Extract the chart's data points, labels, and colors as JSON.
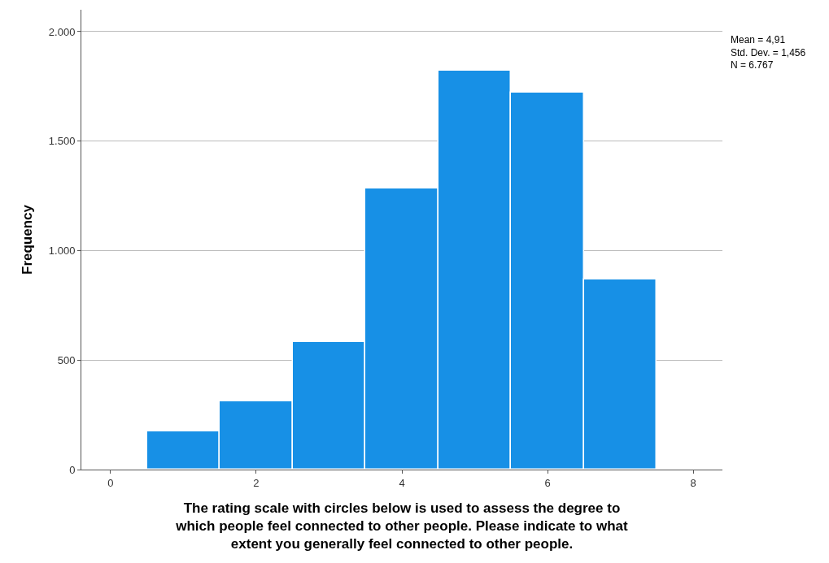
{
  "chart_data": {
    "type": "histogram",
    "xlabel": "The rating scale with circles below is used to assess the degree to which people feel connected to other people. Please indicate to what extent you generally feel connected to other people.",
    "ylabel": "Frequency",
    "bins": [
      0.5,
      1.5,
      2.5,
      3.5,
      4.5,
      5.5,
      6.5,
      7.5
    ],
    "values": [
      175,
      312,
      584,
      1282,
      1821,
      1721,
      870
    ],
    "color": "#1790e6",
    "xlim": [
      -0.4,
      8.4
    ],
    "xticks": [
      0,
      2,
      4,
      6,
      8
    ],
    "ylim": [
      0,
      2100
    ],
    "yticks": [
      0,
      500,
      {
        "value": 1000,
        "label": "1.000"
      },
      {
        "value": 1500,
        "label": "1.500"
      },
      {
        "value": 2000,
        "label": "2.000"
      }
    ],
    "grid": "y",
    "annotations": [
      "Mean = 4,91",
      "Std. Dev. = 1,456",
      "N = 6.767"
    ]
  }
}
